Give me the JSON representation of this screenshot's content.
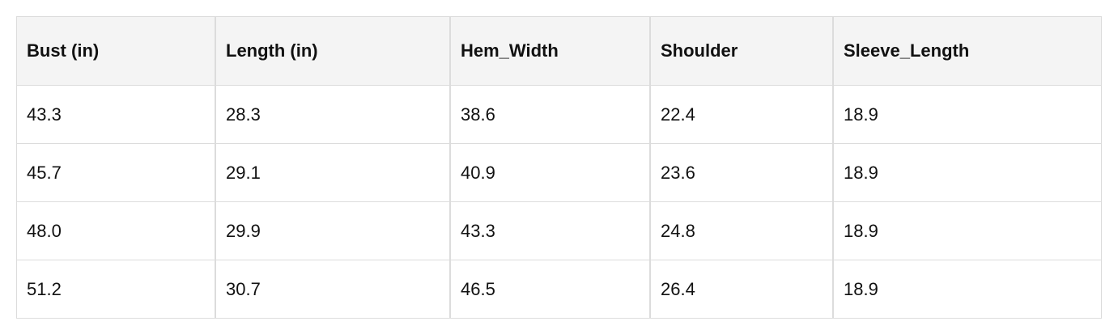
{
  "table": {
    "headers": [
      "Bust (in)",
      "Length (in)",
      "Hem_Width",
      "Shoulder",
      "Sleeve_Length"
    ],
    "rows": [
      [
        "43.3",
        "28.3",
        "38.6",
        "22.4",
        "18.9"
      ],
      [
        "45.7",
        "29.1",
        "40.9",
        "23.6",
        "18.9"
      ],
      [
        "48.0",
        "29.9",
        "43.3",
        "24.8",
        "18.9"
      ],
      [
        "51.2",
        "30.7",
        "46.5",
        "26.4",
        "18.9"
      ]
    ]
  }
}
